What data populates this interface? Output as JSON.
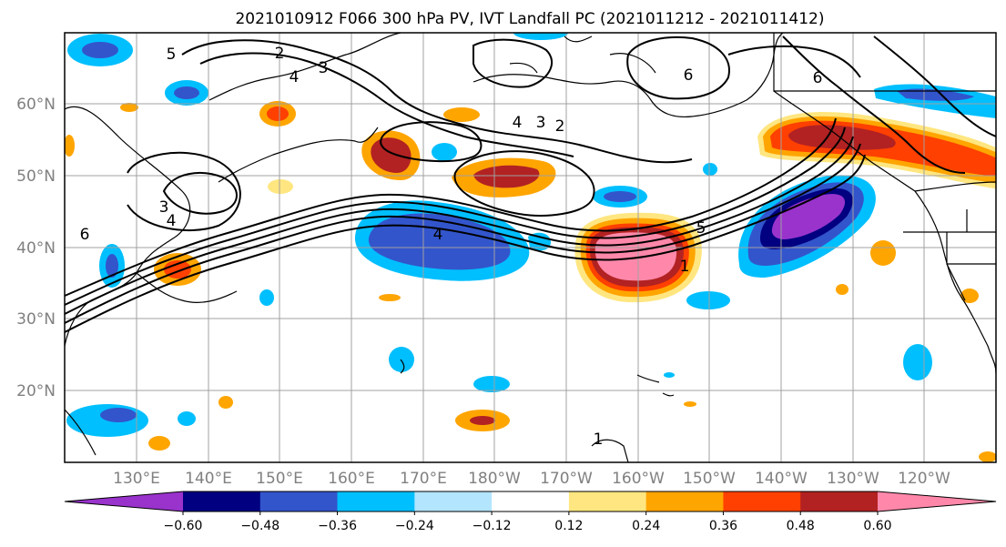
{
  "title": "2021010912 F066 300 hPa PV, IVT Landfall PC (2021011212 - 2021011412)",
  "map": {
    "lat_ticks": [
      "60°N",
      "50°N",
      "40°N",
      "30°N",
      "20°N"
    ],
    "lon_ticks": [
      "130°E",
      "140°E",
      "150°E",
      "160°E",
      "170°E",
      "180°W",
      "170°W",
      "160°W",
      "150°W",
      "140°W",
      "130°W",
      "120°W"
    ],
    "contour_labels": [
      "2",
      "3",
      "4",
      "6",
      "6",
      "3",
      "2",
      "4",
      "4",
      "3",
      "4",
      "6",
      "5",
      "1",
      "5",
      "1"
    ]
  },
  "colorbar": {
    "tick_labels": [
      "−0.60",
      "−0.48",
      "−0.36",
      "−0.24",
      "−0.12",
      "0.12",
      "0.24",
      "0.36",
      "0.48",
      "0.60"
    ],
    "colors": [
      "#9933cc",
      "#000080",
      "#3355cc",
      "#00bfff",
      "#b3e5ff",
      "#ffffff",
      "#ffe680",
      "#ffa500",
      "#ff4000",
      "#b22222",
      "#ff88aa"
    ],
    "extend": "both"
  }
}
